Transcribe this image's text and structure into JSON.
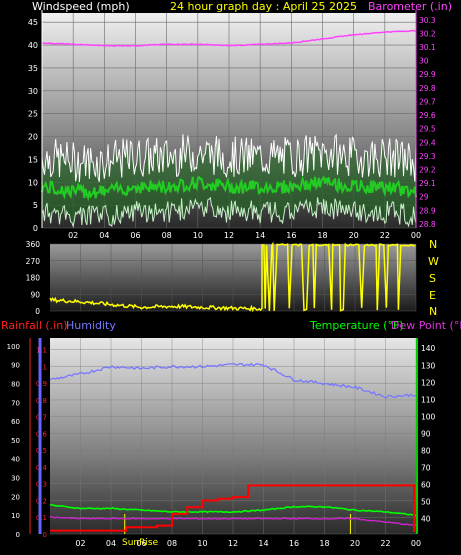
{
  "header": {
    "windspeed_label": "Windspeed (mph)",
    "title": "24 hour graph day : April 25 2025",
    "barometer_label": "Barometer (.in)"
  },
  "direction": {
    "compass_letters": [
      "N",
      "W",
      "S",
      "E",
      "N"
    ]
  },
  "bottom_header": {
    "rainfall_label": "Rainfall (.in)",
    "humidity_label": "Humidity",
    "temperature_label": "Temperature (°F)",
    "dewpoint_label": "Dew Point (°F)"
  },
  "sunrise_label": "SunRise",
  "colors": {
    "windspeed": "#ffffff",
    "wind_avg": "#22cc22",
    "barometer": "#ff44ff",
    "direction": "#ffff00",
    "rainfall": "#ff0000",
    "humidity": "#7777ff",
    "temperature": "#00ff00",
    "dewpoint": "#cc22cc"
  },
  "chart_data": [
    {
      "type": "line",
      "title": "24 hour graph day : April 25 2025",
      "x_ticks": [
        "02",
        "04",
        "06",
        "08",
        "10",
        "12",
        "14",
        "16",
        "18",
        "20",
        "22",
        "00"
      ],
      "left_axis": {
        "label": "Windspeed (mph)",
        "ticks": [
          "0",
          "5",
          "10",
          "15",
          "20",
          "25",
          "30",
          "35",
          "40",
          "45"
        ],
        "range": [
          0,
          47
        ]
      },
      "right_axis": {
        "label": "Barometer (.in)",
        "ticks": [
          "28.8",
          "28.9",
          "29",
          "29.1",
          "29.2",
          "29.3",
          "29.4",
          "29.5",
          "29.6",
          "29.7",
          "29.8",
          "29.9",
          "30",
          "30.1",
          "30.2",
          "30.3"
        ],
        "range": [
          28.77,
          30.35
        ]
      },
      "series": [
        {
          "name": "Barometer (.in)",
          "x": [
            0,
            2,
            4,
            6,
            8,
            10,
            12,
            14,
            16,
            18,
            20,
            22,
            24
          ],
          "values": [
            30.13,
            30.12,
            30.11,
            30.11,
            30.12,
            30.12,
            30.11,
            30.12,
            30.13,
            30.16,
            30.19,
            30.21,
            30.22
          ]
        },
        {
          "x": [
            0,
            2,
            4,
            6,
            8,
            10,
            12,
            14,
            16,
            18,
            20,
            22,
            24
          ],
          "values": [
            9,
            8,
            8,
            9,
            9,
            10,
            9,
            9,
            9,
            10,
            9,
            9,
            8
          ]
        }
      ],
      "grid": true
    },
    {
      "type": "line",
      "left_axis": {
        "ticks": [
          "0",
          "90",
          "180",
          "270",
          "360"
        ],
        "range": [
          0,
          360
        ]
      },
      "right_axis": {
        "ticks": [
          "N",
          "W",
          "S",
          "E",
          "N"
        ]
      },
      "series": [
        {
          "x": [
            0,
            2,
            4,
            6,
            8,
            10,
            12,
            13.9
          ],
          "values": [
            60,
            50,
            35,
            20,
            25,
            20,
            15,
            12
          ]
        }
      ],
      "note_series": "after ~14h direction oscillates rapidly between ~0 and ~360"
    },
    {
      "type": "line",
      "x_ticks": [
        "02",
        "04",
        "06",
        "08",
        "10",
        "12",
        "14",
        "16",
        "18",
        "20",
        "22",
        "00"
      ],
      "left_axis_rain": {
        "label": "Rainfall (.in)",
        "ticks": [
          "0",
          "0.1",
          "0.2",
          "0.3",
          "0.4",
          "0.5",
          "0.6",
          "0.7",
          "0.8",
          "0.9",
          "1",
          "1.1"
        ],
        "range": [
          0,
          1.17
        ]
      },
      "left_axis_humidity": {
        "label": "Humidity",
        "ticks": [
          "0",
          "10",
          "20",
          "30",
          "40",
          "50",
          "60",
          "70",
          "80",
          "90",
          "100"
        ],
        "range": [
          0,
          100
        ]
      },
      "right_axis": {
        "label": "Temperature (°F) Dew Point (°F)",
        "ticks": [
          "40",
          "50",
          "60",
          "70",
          "80",
          "90",
          "100",
          "110",
          "120",
          "130",
          "140"
        ],
        "range": [
          31,
          146
        ]
      },
      "series": [
        {
          "name": "Rainfall (.in)",
          "x": [
            0,
            2,
            4,
            5,
            6,
            7,
            8,
            9,
            10,
            11,
            12,
            13,
            24
          ],
          "values": [
            0.02,
            0.02,
            0.02,
            0.04,
            0.04,
            0.05,
            0.12,
            0.16,
            0.2,
            0.21,
            0.22,
            0.29,
            0.29
          ]
        },
        {
          "name": "Humidity",
          "x": [
            0,
            2,
            4,
            6,
            8,
            10,
            12,
            14,
            16,
            18,
            20,
            22,
            24
          ],
          "values": [
            82,
            85,
            89,
            88,
            89,
            89,
            90,
            90,
            82,
            80,
            78,
            73,
            74
          ]
        },
        {
          "name": "Temperature (°F)",
          "x": [
            0,
            2,
            4,
            6,
            8,
            10,
            12,
            14,
            16,
            18,
            20,
            22,
            24
          ],
          "values": [
            48,
            46,
            46,
            45,
            44,
            44,
            44,
            45,
            47,
            47,
            45,
            44,
            42
          ]
        },
        {
          "name": "Dew Point (°F)",
          "x": [
            0,
            2,
            4,
            6,
            8,
            10,
            12,
            14,
            16,
            18,
            20,
            22,
            24
          ],
          "values": [
            41,
            40,
            40,
            40,
            40,
            40,
            40,
            40,
            40,
            40,
            40,
            38,
            36
          ]
        }
      ],
      "annotations": [
        "SunRise"
      ]
    }
  ]
}
